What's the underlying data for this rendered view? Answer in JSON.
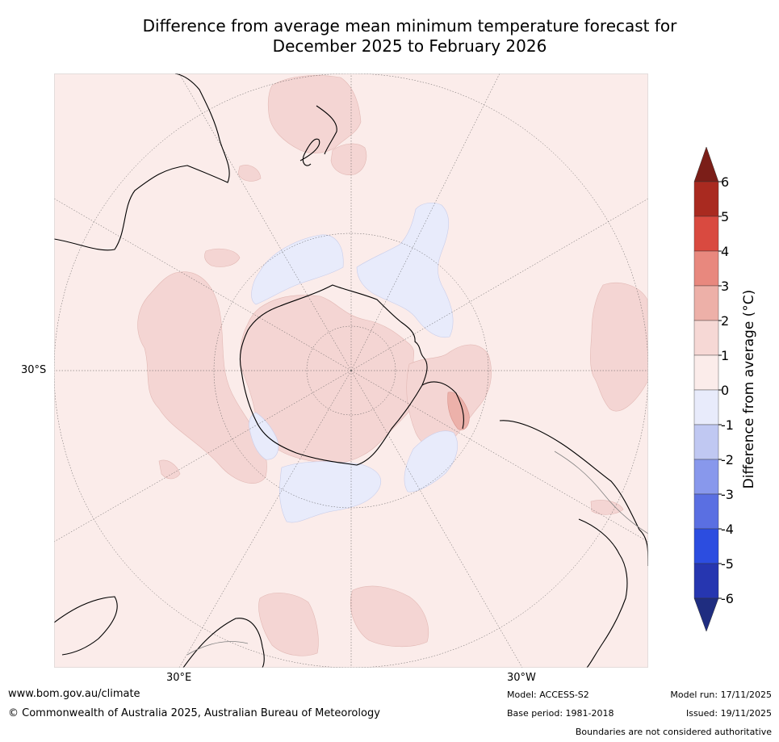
{
  "title_line1": "Difference from average mean minimum temperature forecast for",
  "title_line2": "December 2025 to February 2026",
  "map": {
    "lat_label": "30°S",
    "lon_labels": [
      "30°E",
      "30°W"
    ],
    "colors": {
      "ocean": "#fbecea",
      "warm1": "#f4d5d3",
      "warm2": "#ecb1aa",
      "cool1": "#e8ebfb",
      "coast": "#000000",
      "border": "#808080"
    }
  },
  "colorbar": {
    "title": "Difference from average (°C)",
    "ticks": [
      "6",
      "5",
      "4",
      "3",
      "2",
      "1",
      "0",
      "-1",
      "-2",
      "-3",
      "-4",
      "-5",
      "-6"
    ],
    "colors": [
      "#a92a20",
      "#d94a40",
      "#e8887e",
      "#edb0a8",
      "#f6d8d5",
      "#fbecea",
      "#e8ebfb",
      "#c0c8f2",
      "#8898ec",
      "#5a6fe2",
      "#2c4de0",
      "#2636b0"
    ],
    "over_color": "#7b1e18",
    "under_color": "#1f2d80"
  },
  "footer": {
    "website": "www.bom.gov.au/climate",
    "copyright": "© Commonwealth of Australia 2025, Australian Bureau of Meteorology",
    "model": "Model: ACCESS-S2",
    "base_period": "Base period: 1981-2018",
    "model_run": "Model run: 17/11/2025",
    "issued": "Issued: 19/11/2025",
    "disclaimer": "Boundaries are not considered authoritative"
  }
}
